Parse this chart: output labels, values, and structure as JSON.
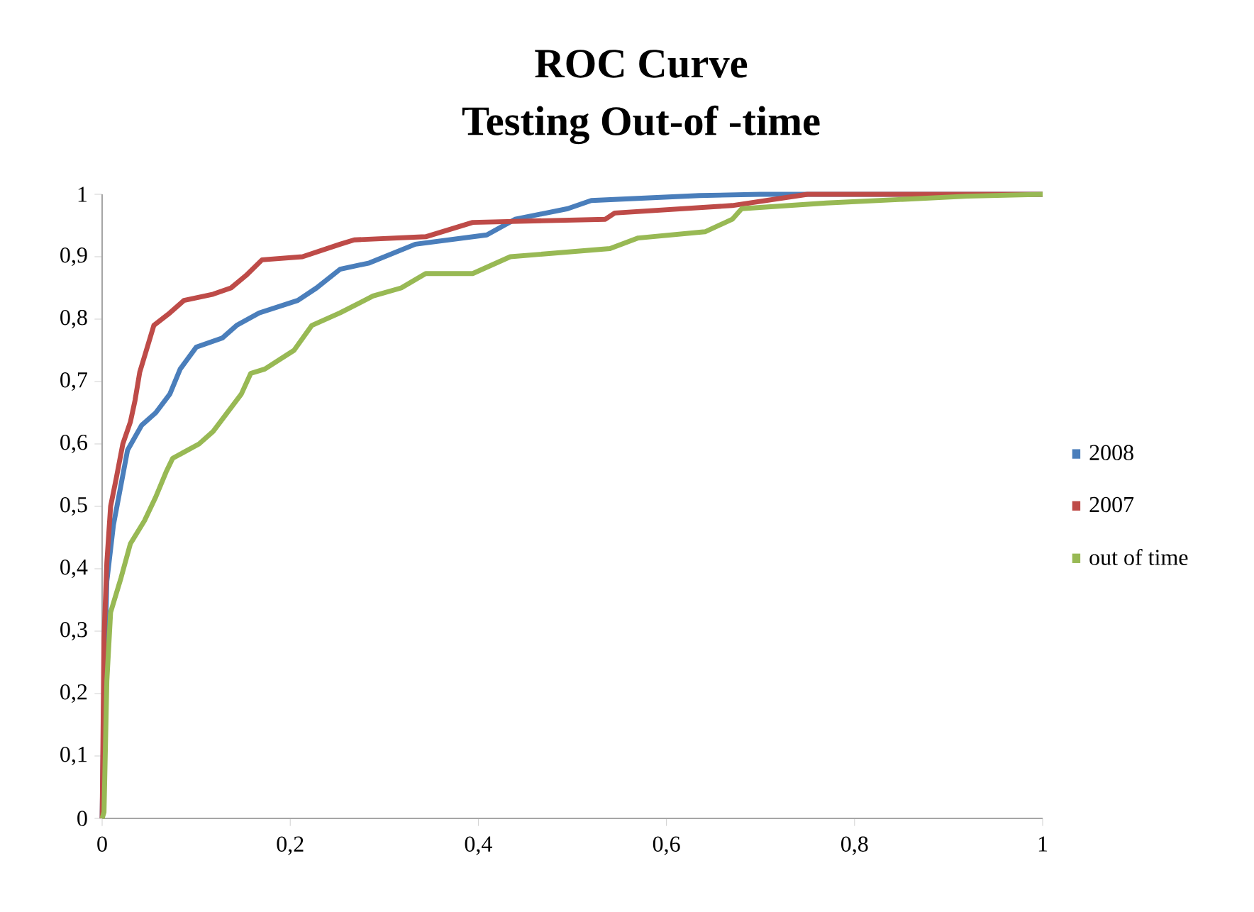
{
  "chart_data": {
    "type": "line",
    "title": "ROC Curve",
    "subtitle": "Testing Out-of -time",
    "xlim": [
      0,
      1
    ],
    "ylim": [
      0,
      1
    ],
    "xticks": [
      {
        "value": 0,
        "label": "0"
      },
      {
        "value": 0.2,
        "label": "0,2"
      },
      {
        "value": 0.4,
        "label": "0,4"
      },
      {
        "value": 0.6,
        "label": "0,6"
      },
      {
        "value": 0.8,
        "label": "0,8"
      },
      {
        "value": 1,
        "label": "1"
      }
    ],
    "yticks": [
      {
        "value": 0,
        "label": "0"
      },
      {
        "value": 0.1,
        "label": "0,1"
      },
      {
        "value": 0.2,
        "label": "0,2"
      },
      {
        "value": 0.3,
        "label": "0,3"
      },
      {
        "value": 0.4,
        "label": "0,4"
      },
      {
        "value": 0.5,
        "label": "0,5"
      },
      {
        "value": 0.6,
        "label": "0,6"
      },
      {
        "value": 0.7,
        "label": "0,7"
      },
      {
        "value": 0.8,
        "label": "0,8"
      },
      {
        "value": 0.9,
        "label": "0,9"
      },
      {
        "value": 1,
        "label": "1"
      }
    ],
    "legend": "right",
    "grid": false,
    "series": [
      {
        "name": "2008",
        "color": "#4a7ebb",
        "x": [
          0,
          0.002,
          0.005,
          0.012,
          0.027,
          0.042,
          0.057,
          0.072,
          0.083,
          0.1,
          0.128,
          0.143,
          0.167,
          0.208,
          0.228,
          0.253,
          0.284,
          0.333,
          0.409,
          0.439,
          0.495,
          0.52,
          0.635,
          0.7,
          1
        ],
        "values": [
          0,
          0.2,
          0.38,
          0.47,
          0.59,
          0.63,
          0.65,
          0.68,
          0.72,
          0.755,
          0.77,
          0.79,
          0.81,
          0.83,
          0.85,
          0.88,
          0.89,
          0.92,
          0.935,
          0.96,
          0.977,
          0.99,
          0.998,
          1,
          1
        ]
      },
      {
        "name": "2007",
        "color": "#be4b48",
        "x": [
          0,
          0.002,
          0.005,
          0.009,
          0.015,
          0.022,
          0.03,
          0.035,
          0.04,
          0.047,
          0.055,
          0.072,
          0.087,
          0.118,
          0.137,
          0.153,
          0.17,
          0.213,
          0.253,
          0.268,
          0.344,
          0.394,
          0.535,
          0.545,
          0.67,
          0.75,
          1
        ],
        "values": [
          0,
          0.29,
          0.41,
          0.5,
          0.545,
          0.6,
          0.635,
          0.67,
          0.715,
          0.75,
          0.79,
          0.81,
          0.83,
          0.84,
          0.85,
          0.87,
          0.895,
          0.9,
          0.92,
          0.927,
          0.932,
          0.955,
          0.96,
          0.97,
          0.982,
          1,
          1
        ]
      },
      {
        "name": "out of time",
        "color": "#98b954",
        "x": [
          0,
          0.002,
          0.005,
          0.009,
          0.02,
          0.03,
          0.045,
          0.057,
          0.068,
          0.075,
          0.103,
          0.118,
          0.133,
          0.148,
          0.158,
          0.173,
          0.204,
          0.223,
          0.253,
          0.288,
          0.318,
          0.344,
          0.394,
          0.434,
          0.54,
          0.57,
          0.641,
          0.67,
          0.68,
          0.77,
          0.92,
          1
        ],
        "values": [
          0,
          0.01,
          0.22,
          0.33,
          0.385,
          0.44,
          0.477,
          0.515,
          0.555,
          0.577,
          0.6,
          0.62,
          0.65,
          0.68,
          0.713,
          0.72,
          0.75,
          0.79,
          0.81,
          0.837,
          0.85,
          0.873,
          0.873,
          0.9,
          0.913,
          0.93,
          0.94,
          0.96,
          0.977,
          0.986,
          0.997,
          1
        ]
      }
    ]
  }
}
